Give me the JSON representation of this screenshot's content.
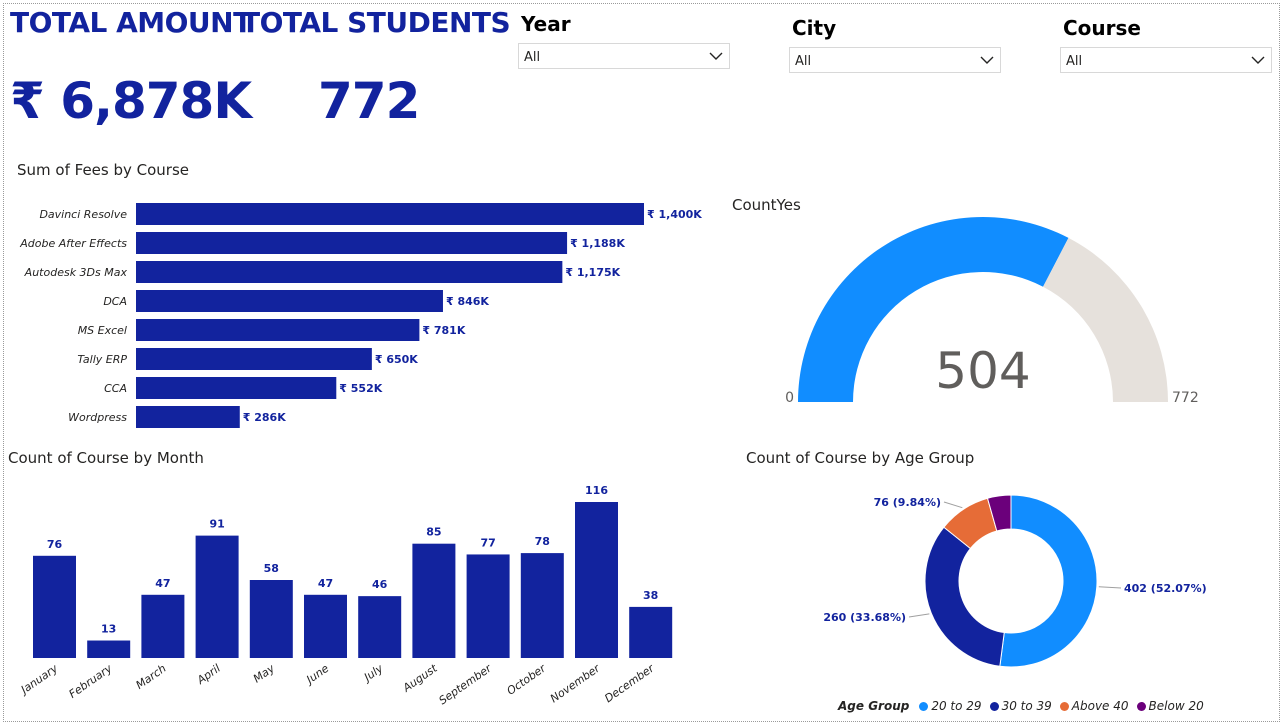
{
  "kpis": {
    "amount_title": "TOTAL AMOUNT",
    "amount_value": "₹ 6,878K",
    "students_title": "TOTAL STUDENTS",
    "students_value": "772"
  },
  "slicers": [
    {
      "label": "Year",
      "value": "All"
    },
    {
      "label": "City",
      "value": "All"
    },
    {
      "label": "Course",
      "value": "All"
    }
  ],
  "fees_by_course": {
    "title": "Sum of Fees by Course",
    "chart_data": {
      "type": "bar",
      "orientation": "horizontal",
      "categories": [
        "Davinci Resolve",
        "Adobe After Effects",
        "Autodesk 3Ds Max",
        "DCA",
        "MS Excel",
        "Tally ERP",
        "CCA",
        "Wordpress"
      ],
      "values": [
        1400,
        1188,
        1175,
        846,
        781,
        650,
        552,
        286
      ],
      "labels": [
        "₹ 1,400K",
        "₹ 1,188K",
        "₹ 1,175K",
        "₹ 846K",
        "₹ 781K",
        "₹ 650K",
        "₹ 552K",
        "₹ 286K"
      ],
      "color": "#12239E"
    }
  },
  "gauge": {
    "title": "CountYes",
    "chart_data": {
      "type": "gauge",
      "value": 504,
      "value_label": "504",
      "min": 0,
      "min_label": "0",
      "max": 772,
      "max_label": "772",
      "fill_color": "#118DFF",
      "track_color": "#E6E1DC"
    }
  },
  "course_by_month": {
    "title": "Count of Course by Month",
    "chart_data": {
      "type": "bar",
      "categories": [
        "January",
        "February",
        "March",
        "April",
        "May",
        "June",
        "July",
        "August",
        "September",
        "October",
        "November",
        "December"
      ],
      "values": [
        76,
        13,
        47,
        91,
        58,
        47,
        46,
        85,
        77,
        78,
        116,
        38
      ],
      "color": "#12239E"
    }
  },
  "age_group": {
    "title": "Count of Course by Age Group",
    "legend_title": "Age Group",
    "chart_data": {
      "type": "pie",
      "variant": "donut",
      "slices": [
        {
          "name": "20 to 29",
          "value": 402,
          "label": "402 (52.07%)",
          "color": "#118DFF"
        },
        {
          "name": "30 to 39",
          "value": 260,
          "label": "260 (33.68%)",
          "color": "#12239E"
        },
        {
          "name": "Above 40",
          "value": 76,
          "label": "76 (9.84%)",
          "color": "#E66C37"
        },
        {
          "name": "Below 20",
          "value": 34,
          "label": "",
          "color": "#6B007B"
        }
      ]
    }
  }
}
